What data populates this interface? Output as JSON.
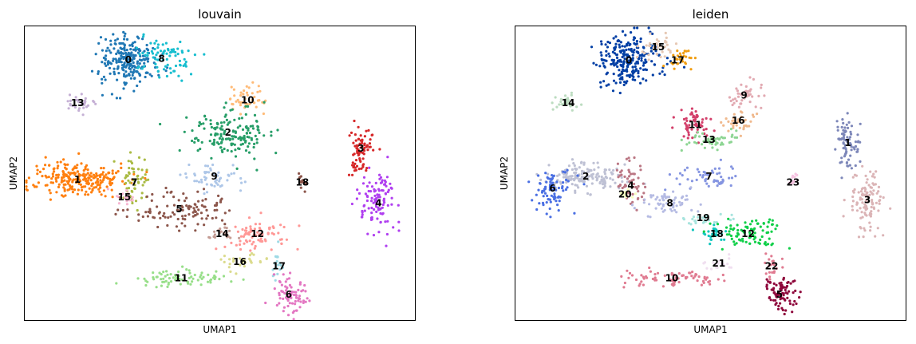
{
  "chart_data": [
    {
      "type": "scatter",
      "title": "louvain",
      "xlabel": "UMAP1",
      "ylabel": "UMAP2",
      "xlim": [
        0,
        100
      ],
      "ylim": [
        0,
        100
      ],
      "grid": false,
      "legend": "on data",
      "clusters": [
        {
          "label": "0",
          "color": "#1f77b4",
          "center": [
            26.5,
            88.6
          ],
          "spread": [
            3.5,
            4.2
          ],
          "n": 240
        },
        {
          "label": "8",
          "color": "#17becf",
          "center": [
            35.0,
            89.0
          ],
          "spread": [
            4.0,
            3.5
          ],
          "n": 80
        },
        {
          "label": "10",
          "color": "#ffbb78",
          "center": [
            57.0,
            75.0
          ],
          "spread": [
            2.5,
            2.5
          ],
          "n": 45
        },
        {
          "label": "13",
          "color": "#c5b0d5",
          "center": [
            13.5,
            74.0
          ],
          "spread": [
            2.0,
            1.2
          ],
          "n": 30
        },
        {
          "label": "2",
          "color": "#279e68",
          "center": [
            52.0,
            64.0
          ],
          "spread": [
            5.0,
            4.0
          ],
          "n": 170
        },
        {
          "label": "3",
          "color": "#d62728",
          "center": [
            86.0,
            58.5
          ],
          "spread": [
            1.5,
            4.5
          ],
          "n": 80
        },
        {
          "label": "1",
          "color": "#ff7f0e",
          "center": [
            13.5,
            48.0
          ],
          "spread": [
            6.0,
            3.0
          ],
          "n": 240
        },
        {
          "label": "7",
          "color": "#aabb44",
          "center": [
            28.0,
            47.0
          ],
          "spread": [
            1.8,
            5.0
          ],
          "n": 55
        },
        {
          "label": "15",
          "color": "#f7b6d2",
          "center": [
            25.5,
            42.0
          ],
          "spread": [
            1.5,
            1.2
          ],
          "n": 20
        },
        {
          "label": "9",
          "color": "#aec7e8",
          "center": [
            48.5,
            49.0
          ],
          "spread": [
            4.0,
            2.0
          ],
          "n": 55
        },
        {
          "label": "18",
          "color": "#8c564b",
          "center": [
            71.0,
            47.0
          ],
          "spread": [
            0.5,
            1.5
          ],
          "n": 12
        },
        {
          "label": "4",
          "color": "#b03ff0",
          "center": [
            90.5,
            40.0
          ],
          "spread": [
            2.5,
            5.0
          ],
          "n": 110
        },
        {
          "label": "5",
          "color": "#8c564b",
          "center": [
            39.5,
            38.0
          ],
          "spread": [
            7.0,
            3.0
          ],
          "n": 110
        },
        {
          "label": "14",
          "color": "#c49c94",
          "center": [
            50.5,
            29.5
          ],
          "spread": [
            2.0,
            1.0
          ],
          "n": 25
        },
        {
          "label": "12",
          "color": "#ff9896",
          "center": [
            59.5,
            29.5
          ],
          "spread": [
            4.0,
            2.5
          ],
          "n": 80
        },
        {
          "label": "17",
          "color": "#9edae5",
          "center": [
            65.0,
            18.5
          ],
          "spread": [
            1.0,
            2.5
          ],
          "n": 20
        },
        {
          "label": "16",
          "color": "#dbdb8d",
          "center": [
            55.0,
            20.0
          ],
          "spread": [
            4.0,
            1.5
          ],
          "n": 30
        },
        {
          "label": "11",
          "color": "#98df8a",
          "center": [
            40.0,
            14.5
          ],
          "spread": [
            6.0,
            1.3
          ],
          "n": 75
        },
        {
          "label": "6",
          "color": "#e377c2",
          "center": [
            67.5,
            9.0
          ],
          "spread": [
            2.0,
            3.0
          ],
          "n": 80
        }
      ]
    },
    {
      "type": "scatter",
      "title": "leiden",
      "xlabel": "UMAP1",
      "ylabel": "UMAP2",
      "xlim": [
        0,
        100
      ],
      "ylim": [
        0,
        100
      ],
      "grid": false,
      "legend": "on data",
      "clusters": [
        {
          "label": "0",
          "color": "#023fa5",
          "center": [
            29.0,
            88.5
          ],
          "spread": [
            4.0,
            4.0
          ],
          "n": 240
        },
        {
          "label": "15",
          "color": "#e6c8b4",
          "center": [
            36.5,
            93.0
          ],
          "spread": [
            2.5,
            1.8
          ],
          "n": 35
        },
        {
          "label": "17",
          "color": "#f19e12",
          "center": [
            41.5,
            88.5
          ],
          "spread": [
            2.3,
            1.5
          ],
          "n": 30
        },
        {
          "label": "9",
          "color": "#e2aab2",
          "center": [
            58.5,
            76.5
          ],
          "spread": [
            2.5,
            2.5
          ],
          "n": 45
        },
        {
          "label": "14",
          "color": "#bcdcc0",
          "center": [
            13.5,
            74.0
          ],
          "spread": [
            2.0,
            1.2
          ],
          "n": 30
        },
        {
          "label": "16",
          "color": "#f0b98d",
          "center": [
            57.0,
            68.0
          ],
          "spread": [
            2.5,
            1.8
          ],
          "n": 35
        },
        {
          "label": "11",
          "color": "#d33f6a",
          "center": [
            46.0,
            66.5
          ],
          "spread": [
            2.0,
            2.5
          ],
          "n": 60
        },
        {
          "label": "13",
          "color": "#8dd593",
          "center": [
            49.5,
            61.5
          ],
          "spread": [
            3.5,
            1.5
          ],
          "n": 50
        },
        {
          "label": "1",
          "color": "#7d87b9",
          "center": [
            85.0,
            60.5
          ],
          "spread": [
            1.5,
            4.5
          ],
          "n": 80
        },
        {
          "label": "3",
          "color": "#dbb4b6",
          "center": [
            90.0,
            41.0
          ],
          "spread": [
            2.5,
            5.0
          ],
          "n": 110
        },
        {
          "label": "2",
          "color": "#bec1d4",
          "center": [
            18.0,
            49.0
          ],
          "spread": [
            5.0,
            2.5
          ],
          "n": 160
        },
        {
          "label": "6",
          "color": "#4a6fe3",
          "center": [
            9.5,
            45.0
          ],
          "spread": [
            2.5,
            3.5
          ],
          "n": 80
        },
        {
          "label": "4",
          "color": "#bb7784",
          "center": [
            29.5,
            46.0
          ],
          "spread": [
            2.0,
            4.0
          ],
          "n": 55
        },
        {
          "label": "20",
          "color": "#f7ffbf",
          "center": [
            28.0,
            43.0
          ],
          "spread": [
            1.0,
            1.0
          ],
          "n": 12
        },
        {
          "label": "7",
          "color": "#8595e1",
          "center": [
            49.5,
            49.0
          ],
          "spread": [
            4.0,
            2.0
          ],
          "n": 55
        },
        {
          "label": "23",
          "color": "#f6c4e1",
          "center": [
            71.0,
            47.0
          ],
          "spread": [
            0.5,
            1.5
          ],
          "n": 12
        },
        {
          "label": "8",
          "color": "#b5bbe3",
          "center": [
            39.5,
            40.0
          ],
          "spread": [
            4.0,
            2.0
          ],
          "n": 60
        },
        {
          "label": "19",
          "color": "#a7e4de",
          "center": [
            48.0,
            35.0
          ],
          "spread": [
            3.0,
            1.2
          ],
          "n": 25
        },
        {
          "label": "18",
          "color": "#11c6bd",
          "center": [
            51.5,
            29.5
          ],
          "spread": [
            2.0,
            1.2
          ],
          "n": 30
        },
        {
          "label": "12",
          "color": "#0fcf48",
          "center": [
            59.5,
            29.5
          ],
          "spread": [
            4.0,
            2.5
          ],
          "n": 90
        },
        {
          "label": "21",
          "color": "#f0dff0",
          "center": [
            52.0,
            19.5
          ],
          "spread": [
            3.0,
            1.3
          ],
          "n": 20
        },
        {
          "label": "22",
          "color": "#e07b91",
          "center": [
            65.5,
            18.5
          ],
          "spread": [
            1.2,
            2.5
          ],
          "n": 20
        },
        {
          "label": "10",
          "color": "#e07b91",
          "center": [
            40.0,
            14.5
          ],
          "spread": [
            6.0,
            1.3
          ],
          "n": 75
        },
        {
          "label": "5",
          "color": "#8e063b",
          "center": [
            67.5,
            9.0
          ],
          "spread": [
            2.0,
            3.0
          ],
          "n": 80
        }
      ]
    }
  ]
}
